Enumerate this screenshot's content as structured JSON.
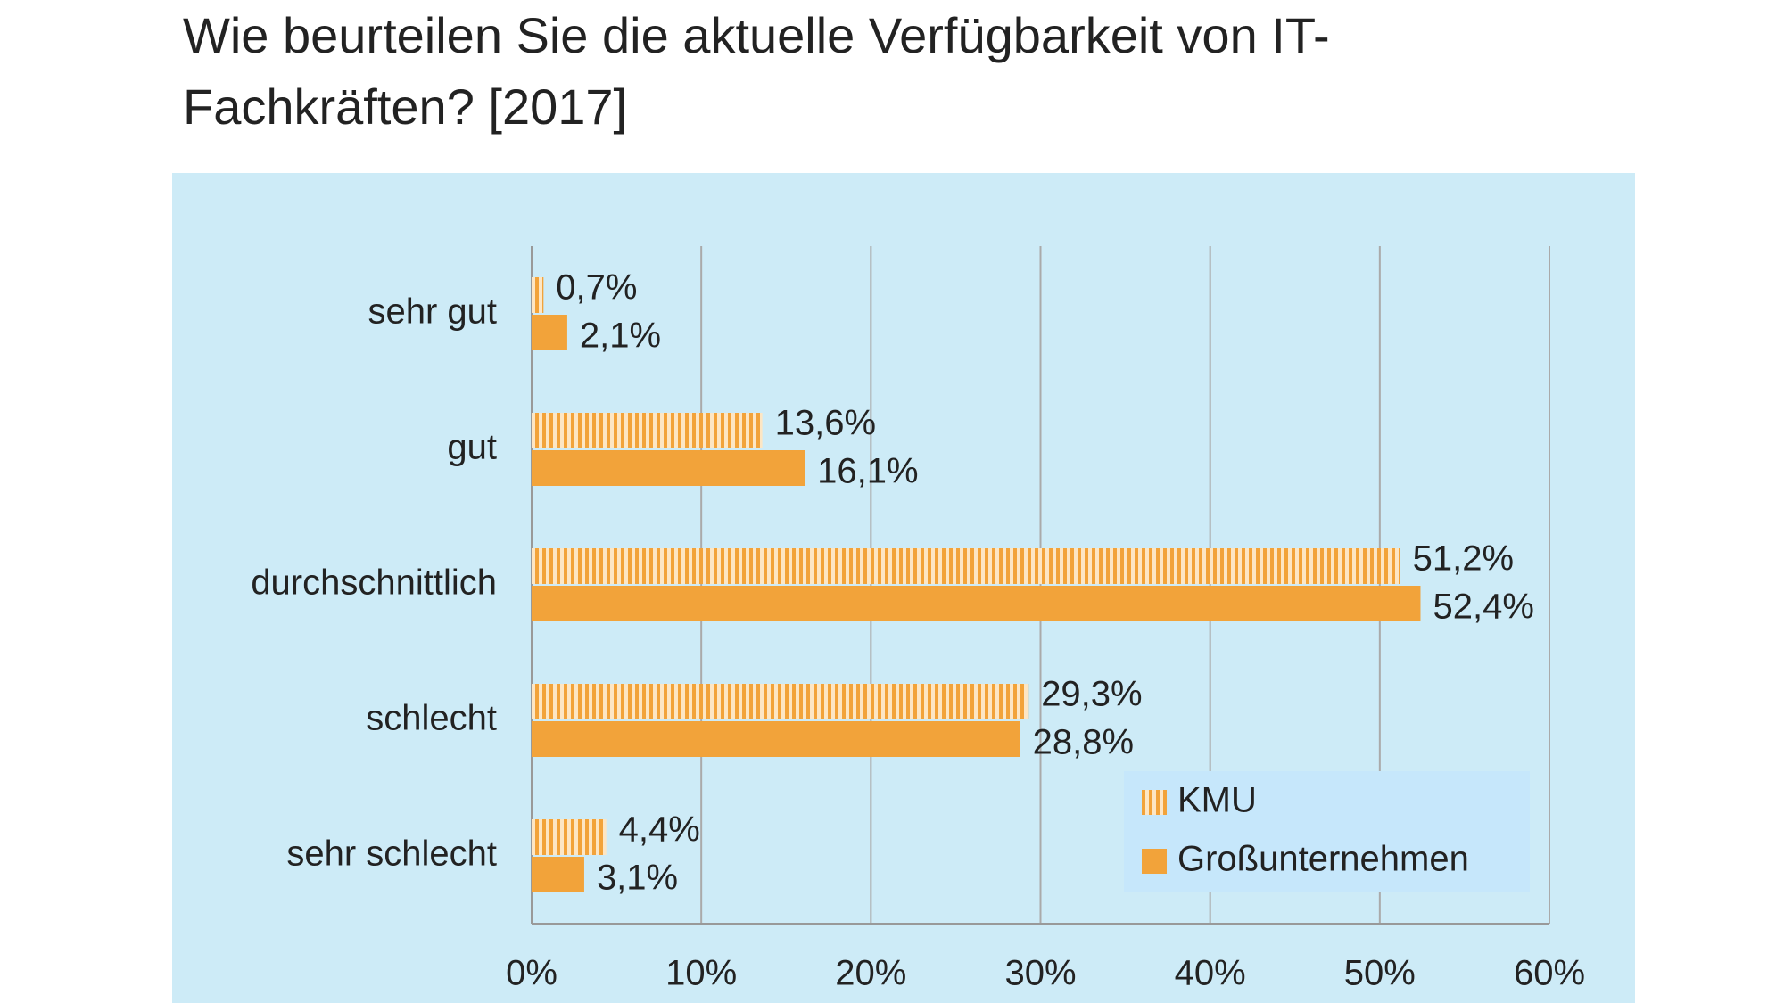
{
  "chart_data": {
    "type": "bar",
    "orientation": "horizontal",
    "title": "Wie beurteilen Sie die aktuelle Verfügbarkeit von IT-Fachkräften? [2017]",
    "categories": [
      "sehr gut",
      "gut",
      "durchschnittlich",
      "schlecht",
      "sehr schlecht"
    ],
    "series": [
      {
        "name": "KMU",
        "color": "#f2a33a",
        "hatch": "vertical",
        "values": [
          0.7,
          13.6,
          51.2,
          29.3,
          4.4
        ],
        "value_labels": [
          "0,7%",
          "13,6%",
          "51,2%",
          "29,3%",
          "4,4%"
        ]
      },
      {
        "name": "Großunternehmen",
        "color": "#f2a33a",
        "values": [
          2.1,
          16.1,
          52.4,
          28.8,
          3.1
        ],
        "value_labels": [
          "2,1%",
          "16,1%",
          "52,4%",
          "28,8%",
          "3,1%"
        ]
      }
    ],
    "xlim": [
      0,
      60
    ],
    "xticks": [
      {
        "value": 0,
        "label": "0%"
      },
      {
        "value": 10,
        "label": "10%"
      },
      {
        "value": 20,
        "label": "20%"
      },
      {
        "value": 30,
        "label": "30%"
      },
      {
        "value": 40,
        "label": "40%"
      },
      {
        "value": 50,
        "label": "50%"
      },
      {
        "value": 60,
        "label": "60%"
      }
    ],
    "grid": true,
    "legend": "lower right"
  }
}
